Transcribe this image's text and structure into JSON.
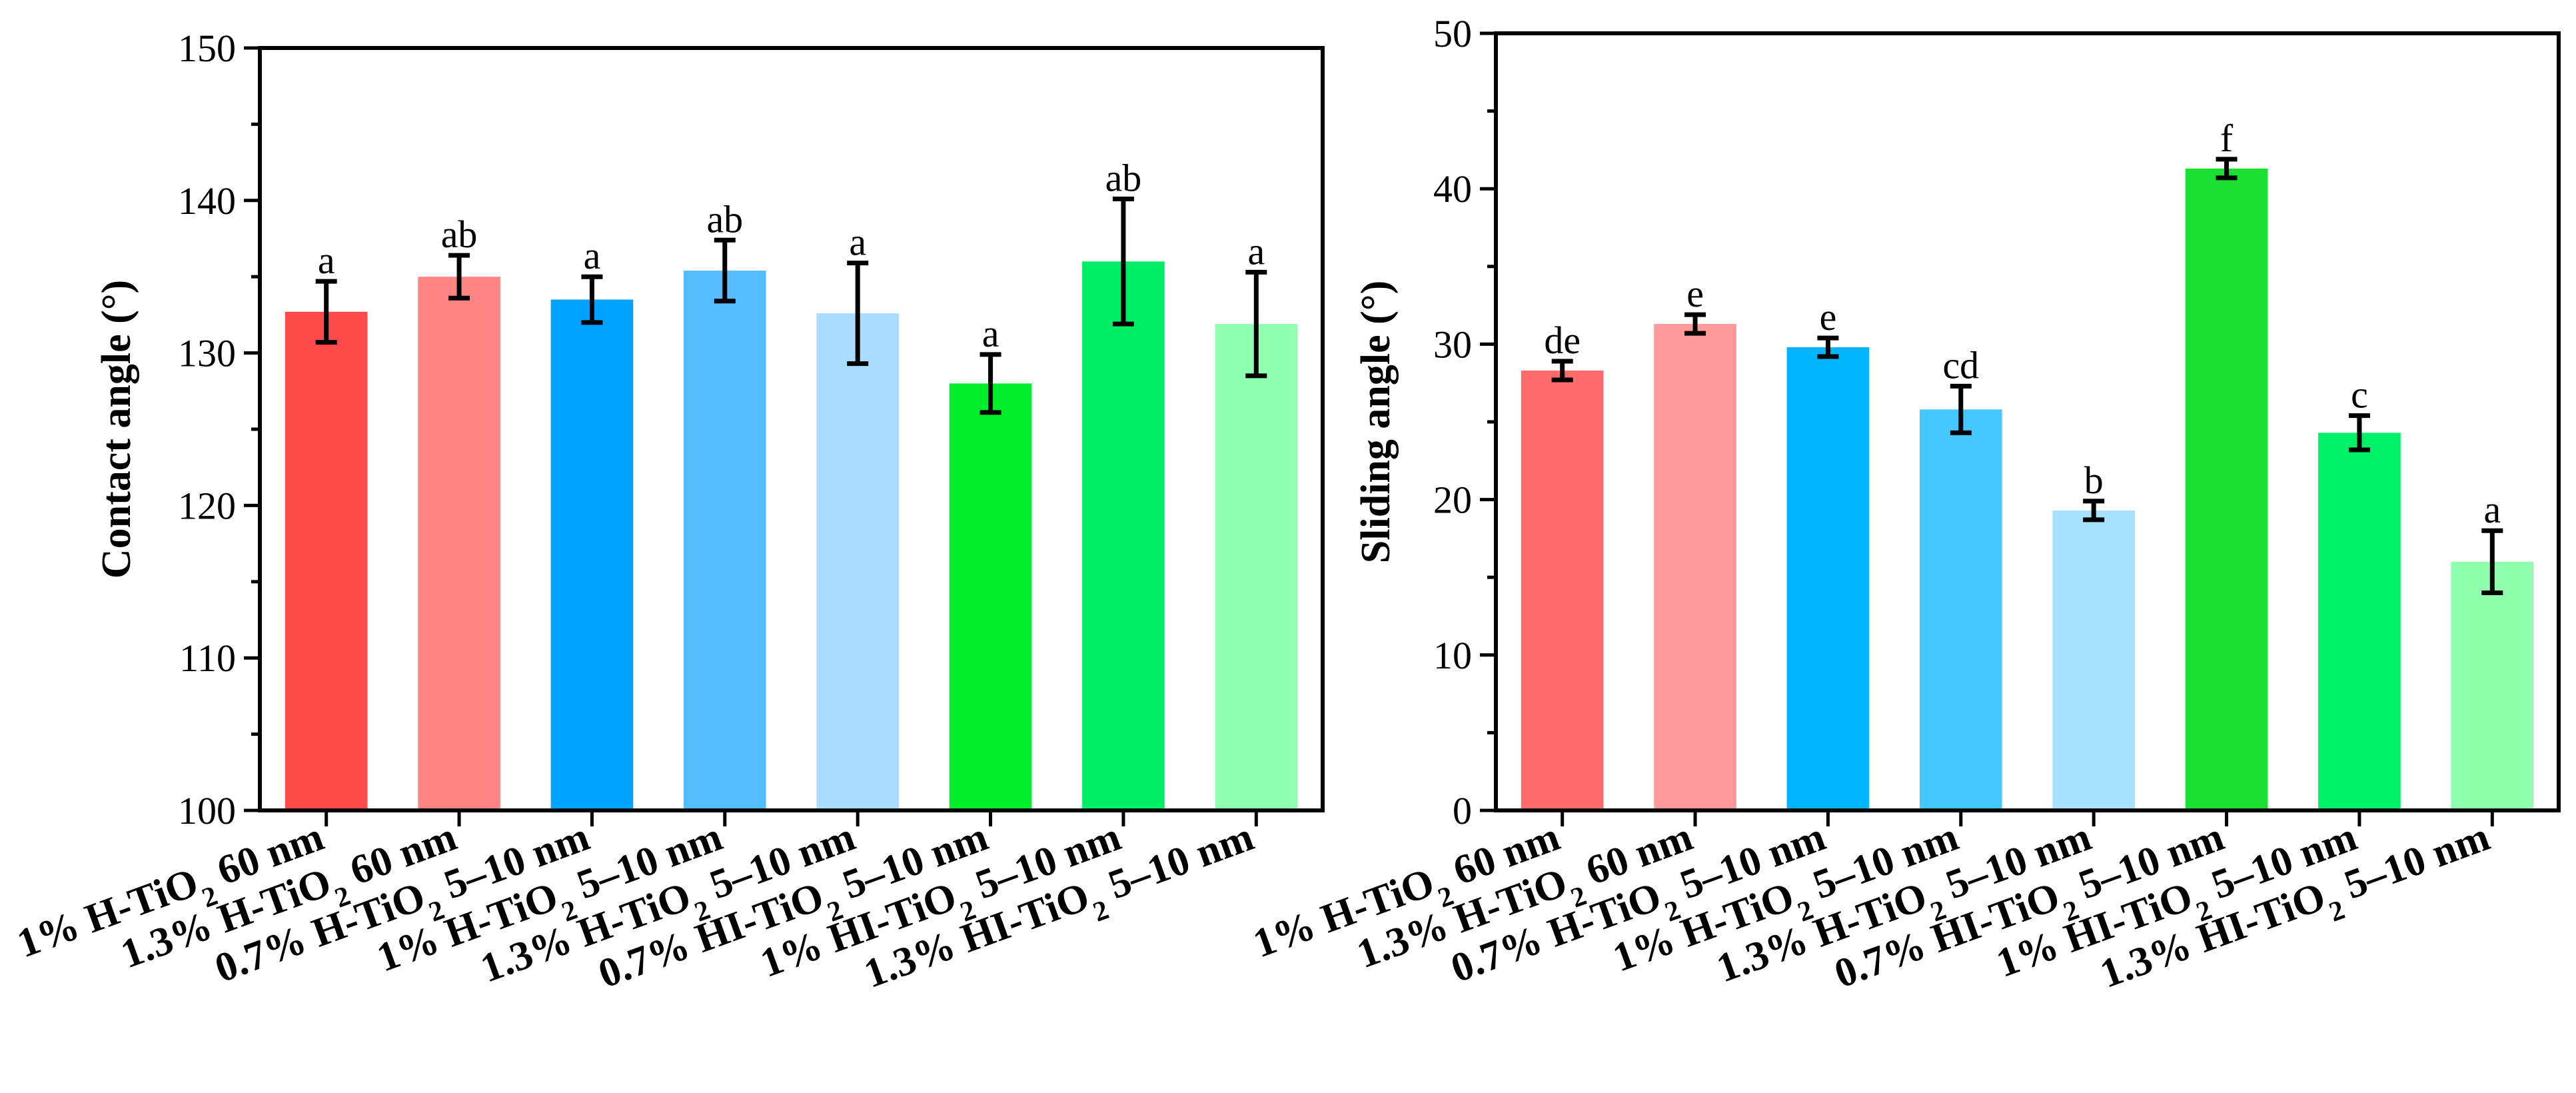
{
  "chart_data": [
    {
      "type": "bar",
      "ylabel": "Contact angle (°)",
      "xlabel": "",
      "ylim": [
        100,
        150
      ],
      "yticks": [
        "100",
        "110",
        "120",
        "130",
        "140",
        "150"
      ],
      "grid": false,
      "categories": [
        {
          "prefix": "1% H-TiO",
          "sub": "2",
          "suffix": " 60 nm"
        },
        {
          "prefix": "1.3% H-TiO",
          "sub": "2",
          "suffix": " 60 nm"
        },
        {
          "prefix": "0.7%  H-TiO",
          "sub": "2",
          "suffix": "  5–10 nm"
        },
        {
          "prefix": "1%  H-TiO",
          "sub": "2",
          "suffix": "  5–10 nm"
        },
        {
          "prefix": "1.3% H-TiO",
          "sub": "2",
          "suffix": " 5–10 nm"
        },
        {
          "prefix": "0.7% HI-TiO",
          "sub": "2",
          "suffix": " 5–10 nm"
        },
        {
          "prefix": "1% HI-TiO",
          "sub": "2",
          "suffix": " 5–10 nm"
        },
        {
          "prefix": "1.3% HI-TiO",
          "sub": "2",
          "suffix": " 5–10 nm"
        }
      ],
      "values": [
        132.7,
        135.0,
        133.5,
        135.4,
        132.6,
        128.0,
        136.0,
        131.9
      ],
      "errors": [
        2.0,
        1.4,
        1.5,
        2.0,
        3.3,
        1.9,
        4.1,
        3.4
      ],
      "labels": [
        "a",
        "ab",
        "a",
        "ab",
        "a",
        "a",
        "ab",
        "a"
      ],
      "colors": [
        "#ff4a4a",
        "#ff8484",
        "#00a4ff",
        "#55bdff",
        "#a9dcff",
        "#00ee2b",
        "#00ee66",
        "#8fffb0"
      ]
    },
    {
      "type": "bar",
      "ylabel": "Sliding angle (°)",
      "xlabel": "",
      "ylim": [
        0,
        50
      ],
      "yticks": [
        "0",
        "10",
        "20",
        "30",
        "40",
        "50"
      ],
      "grid": false,
      "categories": [
        {
          "prefix": "1% H-TiO",
          "sub": "2",
          "suffix": " 60 nm"
        },
        {
          "prefix": "1.3% H-TiO",
          "sub": "2",
          "suffix": " 60 nm"
        },
        {
          "prefix": "0.7%  H-TiO",
          "sub": "2",
          "suffix": "  5–10 nm"
        },
        {
          "prefix": "1%  H-TiO",
          "sub": "2",
          "suffix": "  5–10 nm"
        },
        {
          "prefix": "1.3% H-TiO",
          "sub": "2",
          "suffix": " 5–10 nm"
        },
        {
          "prefix": "0.7% HI-TiO",
          "sub": "2",
          "suffix": " 5–10 nm"
        },
        {
          "prefix": "1% HI-TiO",
          "sub": "2",
          "suffix": " 5–10 nm"
        },
        {
          "prefix": "1.3% HI-TiO",
          "sub": "2",
          "suffix": " 5–10 nm"
        }
      ],
      "values": [
        28.3,
        31.3,
        29.8,
        25.8,
        19.3,
        41.3,
        24.3,
        16.0
      ],
      "errors": [
        0.6,
        0.6,
        0.6,
        1.5,
        0.6,
        0.6,
        1.1,
        2.0
      ],
      "labels": [
        "de",
        "e",
        "e",
        "cd",
        "b",
        "f",
        "c",
        "a"
      ],
      "colors": [
        "#ff6b6b",
        "#ff9a9a",
        "#00b4ff",
        "#45c8ff",
        "#a6e2ff",
        "#19e032",
        "#00f068",
        "#8fffae"
      ]
    }
  ]
}
